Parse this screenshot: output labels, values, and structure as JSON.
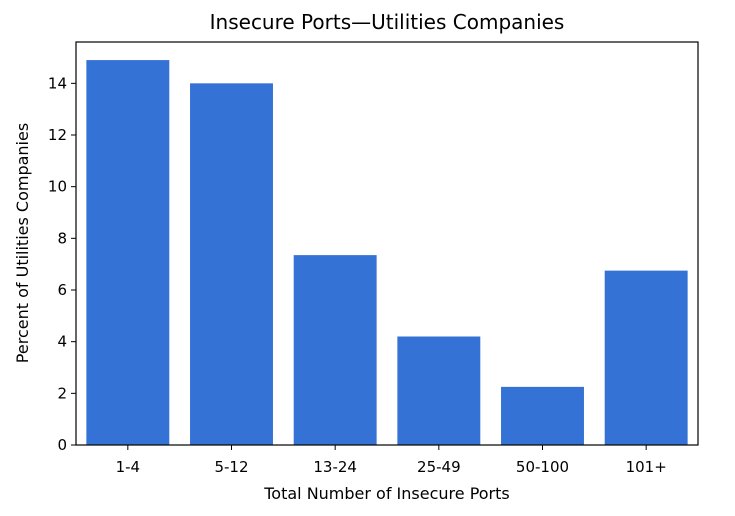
{
  "chart_data": {
    "type": "bar",
    "title": "Insecure Ports—Utilities Companies",
    "xlabel": "Total Number of Insecure Ports",
    "ylabel": "Percent of Utilities Companies",
    "categories": [
      "1-4",
      "5-12",
      "13-24",
      "25-49",
      "50-100",
      "101+"
    ],
    "values": [
      14.9,
      14.0,
      7.35,
      4.2,
      2.25,
      6.75
    ],
    "ylim": [
      0,
      15.6
    ],
    "yticks": [
      0,
      2,
      4,
      6,
      8,
      10,
      12,
      14
    ],
    "bar_color": "#3472d6",
    "grid": false,
    "legend": "none"
  }
}
